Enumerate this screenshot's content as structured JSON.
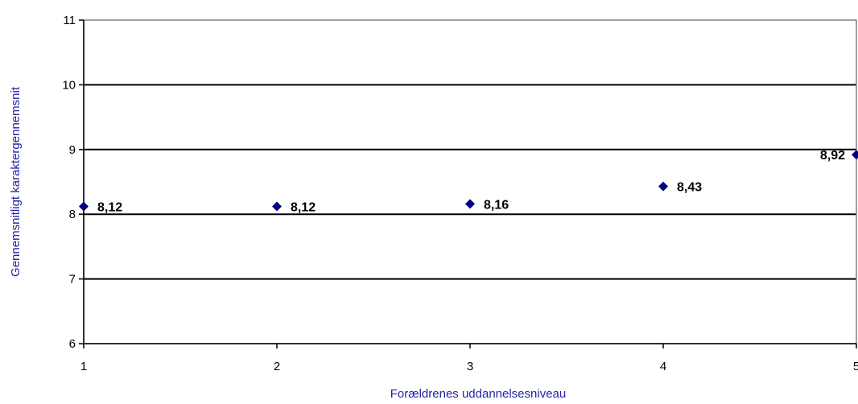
{
  "chart_data": {
    "type": "scatter",
    "title": "",
    "xlabel": "Forældrenes uddannelsesniveau",
    "ylabel": "Gennemsnitligt karaktergennemsnit",
    "xlim": [
      1,
      5
    ],
    "ylim": [
      6,
      11
    ],
    "xticks": [
      "1",
      "2",
      "3",
      "4",
      "5"
    ],
    "yticks": [
      "6",
      "7",
      "8",
      "9",
      "10",
      "11"
    ],
    "grid": "horizontal",
    "legend": "none",
    "series": [
      {
        "marker": "diamond",
        "color": "#000080",
        "points": [
          {
            "x": 1,
            "y": 8.12,
            "label": "8,12"
          },
          {
            "x": 2,
            "y": 8.12,
            "label": "8,12"
          },
          {
            "x": 3,
            "y": 8.16,
            "label": "8,16"
          },
          {
            "x": 4,
            "y": 8.43,
            "label": "8,43"
          },
          {
            "x": 5,
            "y": 8.92,
            "label": "8,92"
          }
        ]
      }
    ],
    "colors": {
      "axis_title": "#2323a8",
      "plot_border": "#808080",
      "grid": "#000000"
    }
  }
}
